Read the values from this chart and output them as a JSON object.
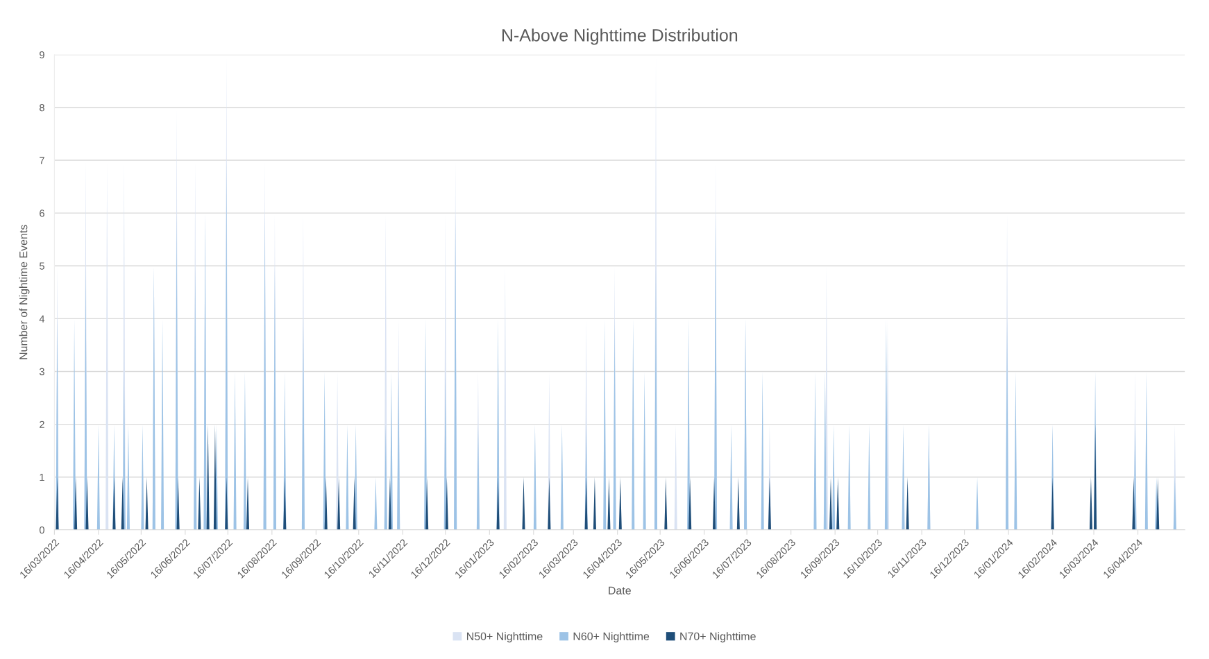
{
  "chart_data": {
    "type": "area",
    "title": "N-Above Nighttime Distribution",
    "xlabel": "Date",
    "ylabel": "Number of Nightime Events",
    "xlim": [
      "2022-03-16",
      "2024-05-19"
    ],
    "ylim": [
      0,
      9
    ],
    "yticks": [
      0,
      1,
      2,
      3,
      4,
      5,
      6,
      7,
      8,
      9
    ],
    "xticks": [
      {
        "value": "2022-03-16",
        "label": "16/03/2022"
      },
      {
        "value": "2022-04-16",
        "label": "16/04/2022"
      },
      {
        "value": "2022-05-16",
        "label": "16/05/2022"
      },
      {
        "value": "2022-06-16",
        "label": "16/06/2022"
      },
      {
        "value": "2022-07-16",
        "label": "16/07/2022"
      },
      {
        "value": "2022-08-16",
        "label": "16/08/2022"
      },
      {
        "value": "2022-09-16",
        "label": "16/09/2022"
      },
      {
        "value": "2022-10-16",
        "label": "16/10/2022"
      },
      {
        "value": "2022-11-16",
        "label": "16/11/2022"
      },
      {
        "value": "2022-12-16",
        "label": "16/12/2022"
      },
      {
        "value": "2023-01-16",
        "label": "16/01/2023"
      },
      {
        "value": "2023-02-16",
        "label": "16/02/2023"
      },
      {
        "value": "2023-03-16",
        "label": "16/03/2023"
      },
      {
        "value": "2023-04-16",
        "label": "16/04/2023"
      },
      {
        "value": "2023-05-16",
        "label": "16/05/2023"
      },
      {
        "value": "2023-06-16",
        "label": "16/06/2023"
      },
      {
        "value": "2023-07-16",
        "label": "16/07/2023"
      },
      {
        "value": "2023-08-16",
        "label": "16/08/2023"
      },
      {
        "value": "2023-09-16",
        "label": "16/09/2023"
      },
      {
        "value": "2023-10-16",
        "label": "16/10/2023"
      },
      {
        "value": "2023-11-16",
        "label": "16/11/2023"
      },
      {
        "value": "2023-12-16",
        "label": "16/12/2023"
      },
      {
        "value": "2024-01-16",
        "label": "16/01/2024"
      },
      {
        "value": "2024-02-16",
        "label": "16/02/2024"
      },
      {
        "value": "2024-03-16",
        "label": "16/03/2024"
      },
      {
        "value": "2024-04-16",
        "label": "16/04/2024"
      }
    ],
    "grid": "y",
    "legend": "bottom",
    "series": [
      {
        "name": "N50+ Nighttime",
        "color": "#dae3f3",
        "x": [
          "2022-03-17",
          "2022-03-18",
          "2022-03-19",
          "2022-04-06",
          "2022-04-07",
          "2022-04-08",
          "2022-04-21",
          "2022-04-22",
          "2022-04-23",
          "2022-05-03",
          "2022-05-04",
          "2022-05-05",
          "2022-05-24",
          "2022-05-25",
          "2022-05-26",
          "2022-06-09",
          "2022-06-10",
          "2022-06-11",
          "2022-06-22",
          "2022-06-23",
          "2022-06-24",
          "2022-06-29",
          "2022-06-30",
          "2022-07-01",
          "2022-07-14",
          "2022-07-15",
          "2022-07-16",
          "2022-08-10",
          "2022-08-11",
          "2022-08-12",
          "2022-08-17",
          "2022-08-18",
          "2022-08-19",
          "2022-09-06",
          "2022-09-07",
          "2022-09-08",
          "2022-09-30",
          "2022-10-01",
          "2022-10-02",
          "2022-11-03",
          "2022-11-04",
          "2022-11-05",
          "2022-11-12",
          "2022-11-13",
          "2022-11-14",
          "2022-12-15",
          "2022-12-16",
          "2022-12-17",
          "2022-12-22",
          "2022-12-23",
          "2022-12-24",
          "2023-01-07",
          "2023-01-08",
          "2023-01-09",
          "2023-01-26",
          "2023-01-27",
          "2023-01-28",
          "2023-02-26",
          "2023-02-27",
          "2023-02-28",
          "2023-03-24",
          "2023-03-25",
          "2023-03-26",
          "2023-04-13",
          "2023-04-14",
          "2023-04-15",
          "2023-05-12",
          "2023-05-13",
          "2023-05-14",
          "2023-05-26",
          "2023-05-27",
          "2023-05-28",
          "2023-06-23",
          "2023-06-24",
          "2023-06-25",
          "2023-07-14",
          "2023-07-15",
          "2023-07-16",
          "2023-07-31",
          "2023-08-01",
          "2023-08-02",
          "2023-09-09",
          "2023-09-10",
          "2023-09-11",
          "2023-10-22",
          "2023-10-23",
          "2023-10-24",
          "2023-11-20",
          "2023-11-21",
          "2023-11-22",
          "2024-01-14",
          "2024-01-15",
          "2024-01-16",
          "2024-02-15",
          "2024-02-16",
          "2024-02-17",
          "2024-04-13",
          "2024-04-14",
          "2024-04-15",
          "2024-05-11",
          "2024-05-12",
          "2024-05-13"
        ],
        "values": [
          0,
          5,
          0,
          0,
          7,
          0,
          0,
          7,
          0,
          0,
          7,
          0,
          0,
          5,
          0,
          0,
          8,
          0,
          0,
          7,
          0,
          0,
          6,
          0,
          0,
          9,
          0,
          0,
          7,
          0,
          0,
          6,
          0,
          0,
          6,
          0,
          0,
          3,
          0,
          0,
          6,
          0,
          0,
          4,
          0,
          0,
          6,
          0,
          0,
          7,
          0,
          0,
          3,
          0,
          0,
          5,
          0,
          0,
          3,
          0,
          0,
          4,
          0,
          0,
          5,
          0,
          0,
          9,
          0,
          0,
          2,
          0,
          0,
          7,
          0,
          0,
          4,
          0,
          0,
          2,
          0,
          0,
          5,
          0,
          0,
          4,
          0,
          0,
          2,
          0,
          0,
          6,
          0,
          0,
          2,
          0,
          0,
          3,
          0,
          0,
          2,
          0
        ]
      },
      {
        "name": "N60+ Nighttime",
        "color": "#9dc3e6",
        "x": [
          "2022-03-17",
          "2022-03-18",
          "2022-03-19",
          "2022-03-29",
          "2022-03-30",
          "2022-03-31",
          "2022-04-06",
          "2022-04-07",
          "2022-04-08",
          "2022-04-15",
          "2022-04-16",
          "2022-04-17",
          "2022-04-26",
          "2022-04-27",
          "2022-04-28",
          "2022-05-03",
          "2022-05-04",
          "2022-05-05",
          "2022-05-06",
          "2022-05-07",
          "2022-05-08",
          "2022-05-16",
          "2022-05-17",
          "2022-05-18",
          "2022-05-24",
          "2022-05-25",
          "2022-05-26",
          "2022-05-30",
          "2022-05-31",
          "2022-06-01",
          "2022-06-09",
          "2022-06-10",
          "2022-06-11",
          "2022-06-22",
          "2022-06-23",
          "2022-06-24",
          "2022-06-29",
          "2022-06-30",
          "2022-07-01",
          "2022-07-07",
          "2022-07-08",
          "2022-07-09",
          "2022-07-14",
          "2022-07-15",
          "2022-07-16",
          "2022-07-20",
          "2022-07-21",
          "2022-07-22",
          "2022-07-27",
          "2022-07-28",
          "2022-07-29",
          "2022-08-10",
          "2022-08-11",
          "2022-08-12",
          "2022-08-17",
          "2022-08-18",
          "2022-08-19",
          "2022-08-24",
          "2022-08-25",
          "2022-08-26",
          "2022-09-06",
          "2022-09-07",
          "2022-09-08",
          "2022-09-21",
          "2022-09-22",
          "2022-09-23",
          "2022-10-07",
          "2022-10-08",
          "2022-10-09",
          "2022-10-13",
          "2022-10-14",
          "2022-10-15",
          "2022-10-27",
          "2022-10-28",
          "2022-10-29",
          "2022-11-03",
          "2022-11-04",
          "2022-11-05",
          "2022-11-07",
          "2022-11-08",
          "2022-11-09",
          "2022-11-12",
          "2022-11-13",
          "2022-11-14",
          "2022-12-01",
          "2022-12-02",
          "2022-12-03",
          "2022-12-15",
          "2022-12-16",
          "2022-12-17",
          "2022-12-22",
          "2022-12-23",
          "2022-12-24",
          "2023-01-07",
          "2023-01-08",
          "2023-01-09",
          "2023-01-21",
          "2023-01-22",
          "2023-01-23",
          "2023-02-16",
          "2023-02-17",
          "2023-02-18",
          "2023-03-07",
          "2023-03-08",
          "2023-03-09",
          "2023-03-24",
          "2023-03-25",
          "2023-03-26",
          "2023-04-06",
          "2023-04-07",
          "2023-04-08",
          "2023-04-13",
          "2023-04-14",
          "2023-04-15",
          "2023-04-26",
          "2023-04-27",
          "2023-04-28",
          "2023-05-04",
          "2023-05-05",
          "2023-05-06",
          "2023-05-12",
          "2023-05-13",
          "2023-05-14",
          "2023-06-04",
          "2023-06-05",
          "2023-06-06",
          "2023-06-23",
          "2023-06-24",
          "2023-06-25",
          "2023-07-04",
          "2023-07-05",
          "2023-07-06",
          "2023-07-14",
          "2023-07-15",
          "2023-07-16",
          "2023-07-26",
          "2023-07-27",
          "2023-07-28",
          "2023-09-01",
          "2023-09-02",
          "2023-09-03",
          "2023-09-08",
          "2023-09-09",
          "2023-09-10",
          "2023-09-14",
          "2023-09-15",
          "2023-09-16",
          "2023-09-25",
          "2023-09-26",
          "2023-09-27",
          "2023-10-09",
          "2023-10-10",
          "2023-10-11",
          "2023-10-21",
          "2023-10-22",
          "2023-10-23",
          "2023-11-02",
          "2023-11-03",
          "2023-11-04",
          "2023-11-20",
          "2023-11-21",
          "2023-11-22",
          "2023-12-24",
          "2023-12-25",
          "2023-12-26",
          "2024-01-14",
          "2024-01-15",
          "2024-01-16",
          "2024-01-20",
          "2024-01-21",
          "2024-01-22",
          "2024-02-15",
          "2024-02-16",
          "2024-02-17",
          "2024-03-16",
          "2024-03-17",
          "2024-03-18",
          "2024-04-13",
          "2024-04-14",
          "2024-04-15",
          "2024-04-21",
          "2024-04-22",
          "2024-04-23",
          "2024-04-28",
          "2024-04-29",
          "2024-04-30",
          "2024-05-11",
          "2024-05-12",
          "2024-05-13"
        ],
        "values": [
          0,
          4,
          0,
          0,
          4,
          0,
          0,
          5,
          0,
          0,
          2,
          0,
          0,
          2,
          0,
          0,
          3,
          0,
          0,
          2,
          0,
          0,
          2,
          0,
          0,
          5,
          0,
          0,
          4,
          0,
          0,
          6,
          0,
          0,
          5,
          0,
          0,
          6,
          0,
          0,
          2,
          0,
          0,
          7,
          0,
          0,
          3,
          0,
          0,
          3,
          0,
          0,
          6,
          0,
          0,
          5,
          0,
          0,
          3,
          0,
          0,
          4,
          0,
          0,
          3,
          0,
          0,
          2,
          0,
          0,
          2,
          0,
          0,
          1,
          0,
          0,
          2,
          0,
          0,
          3,
          0,
          0,
          3,
          0,
          0,
          4,
          0,
          0,
          3,
          0,
          0,
          6,
          0,
          0,
          2,
          0,
          0,
          4,
          0,
          0,
          2,
          0,
          0,
          2,
          0,
          0,
          2,
          0,
          0,
          4,
          0,
          0,
          4,
          0,
          0,
          4,
          0,
          0,
          3,
          0,
          0,
          5,
          0,
          0,
          4,
          0,
          0,
          6,
          0,
          0,
          2,
          0,
          0,
          4,
          0,
          0,
          3,
          0,
          0,
          3,
          0,
          0,
          3,
          0,
          0,
          2,
          0,
          0,
          2,
          0,
          0,
          2,
          0,
          0,
          4,
          0,
          0,
          2,
          0,
          0,
          2,
          0,
          0,
          1,
          0,
          0,
          4,
          0,
          0,
          3,
          0,
          0,
          2,
          0,
          0,
          3,
          0,
          0,
          2,
          0,
          0,
          3,
          0,
          0,
          1,
          0,
          0,
          1,
          0
        ]
      },
      {
        "name": "N70+ Nighttime",
        "color": "#1f4e79",
        "x": [
          "2022-03-17",
          "2022-03-18",
          "2022-03-19",
          "2022-03-30",
          "2022-03-31",
          "2022-04-01",
          "2022-04-07",
          "2022-04-08",
          "2022-04-09",
          "2022-04-26",
          "2022-04-27",
          "2022-04-28",
          "2022-05-02",
          "2022-05-03",
          "2022-05-04",
          "2022-05-19",
          "2022-05-20",
          "2022-05-21",
          "2022-06-10",
          "2022-06-11",
          "2022-06-12",
          "2022-06-25",
          "2022-06-26",
          "2022-06-27",
          "2022-07-01",
          "2022-07-02",
          "2022-07-03",
          "2022-07-06",
          "2022-07-07",
          "2022-07-08",
          "2022-07-14",
          "2022-07-15",
          "2022-07-16",
          "2022-07-29",
          "2022-07-30",
          "2022-07-31",
          "2022-08-24",
          "2022-08-25",
          "2022-08-26",
          "2022-09-22",
          "2022-09-23",
          "2022-09-24",
          "2022-10-01",
          "2022-10-02",
          "2022-10-03",
          "2022-10-12",
          "2022-10-13",
          "2022-10-14",
          "2022-11-06",
          "2022-11-07",
          "2022-11-08",
          "2022-12-02",
          "2022-12-03",
          "2022-12-04",
          "2022-12-16",
          "2022-12-17",
          "2022-12-18",
          "2023-01-21",
          "2023-01-22",
          "2023-01-23",
          "2023-02-08",
          "2023-02-09",
          "2023-02-10",
          "2023-02-26",
          "2023-02-27",
          "2023-02-28",
          "2023-03-24",
          "2023-03-25",
          "2023-03-26",
          "2023-03-30",
          "2023-03-31",
          "2023-04-01",
          "2023-04-09",
          "2023-04-10",
          "2023-04-11",
          "2023-04-17",
          "2023-04-18",
          "2023-04-19",
          "2023-05-19",
          "2023-05-20",
          "2023-05-21",
          "2023-06-05",
          "2023-06-06",
          "2023-06-07",
          "2023-06-22",
          "2023-06-23",
          "2023-06-24",
          "2023-07-09",
          "2023-07-10",
          "2023-07-11",
          "2023-07-31",
          "2023-08-01",
          "2023-08-02",
          "2023-09-12",
          "2023-09-13",
          "2023-09-14",
          "2023-09-17",
          "2023-09-18",
          "2023-09-19",
          "2023-11-05",
          "2023-11-06",
          "2023-11-07",
          "2024-02-15",
          "2024-02-16",
          "2024-02-17",
          "2024-03-13",
          "2024-03-14",
          "2024-03-15",
          "2024-03-16",
          "2024-03-17",
          "2024-03-18",
          "2024-04-12",
          "2024-04-13",
          "2024-04-14",
          "2024-04-29",
          "2024-04-30",
          "2024-05-01"
        ],
        "values": [
          0,
          1,
          0,
          0,
          1,
          0,
          0,
          1,
          0,
          0,
          1,
          0,
          0,
          1,
          0,
          0,
          1,
          0,
          0,
          1,
          0,
          0,
          1,
          0,
          0,
          2,
          0,
          0,
          2,
          0,
          0,
          1,
          0,
          0,
          1,
          0,
          0,
          1,
          0,
          0,
          1,
          0,
          0,
          1,
          0,
          0,
          1,
          0,
          0,
          1,
          0,
          0,
          1,
          0,
          0,
          1,
          0,
          0,
          1,
          0,
          0,
          1,
          0,
          0,
          1,
          0,
          0,
          1,
          0,
          0,
          1,
          0,
          0,
          1,
          0,
          0,
          1,
          0,
          0,
          1,
          0,
          0,
          1,
          0,
          0,
          1,
          0,
          0,
          1,
          0,
          0,
          1,
          0,
          0,
          1,
          0,
          0,
          1,
          0,
          0,
          1,
          0,
          0,
          1,
          0,
          0,
          1,
          0,
          0,
          2,
          0,
          0,
          1,
          0,
          0,
          1,
          0
        ]
      }
    ]
  }
}
